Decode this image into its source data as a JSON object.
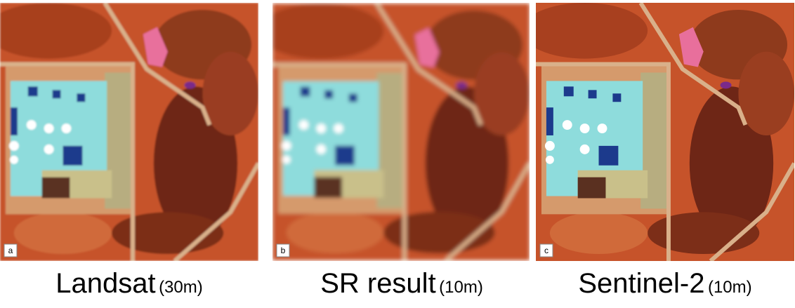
{
  "panels": [
    {
      "tag": "a",
      "caption": "Landsat",
      "resolution": "(30m)"
    },
    {
      "tag": "b",
      "caption": "SR result",
      "resolution": "(10m)"
    },
    {
      "tag": "c",
      "caption": "Sentinel-2",
      "resolution": "(10m)"
    }
  ]
}
